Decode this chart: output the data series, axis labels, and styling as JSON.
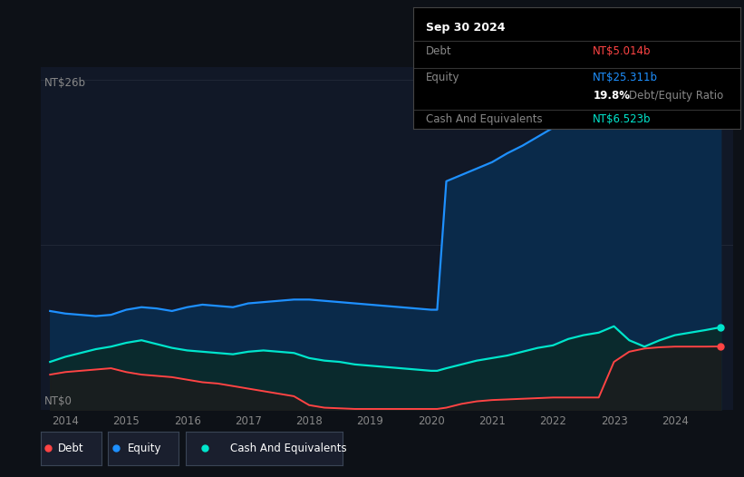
{
  "bg_color": "#0d1117",
  "plot_bg_color": "#111827",
  "title_box": {
    "date": "Sep 30 2024",
    "debt_label": "Debt",
    "debt_value": "NT$5.014b",
    "debt_color": "#ff4444",
    "equity_label": "Equity",
    "equity_value": "NT$25.311b",
    "equity_color": "#1e90ff",
    "ratio_value": "19.8%",
    "ratio_label": " Debt/Equity Ratio",
    "ratio_color": "#888888",
    "cash_label": "Cash And Equivalents",
    "cash_value": "NT$6.523b",
    "cash_color": "#00e5cc"
  },
  "y_label_top": "NT$26b",
  "y_label_bottom": "NT$0",
  "x_ticks": [
    2014,
    2015,
    2016,
    2017,
    2018,
    2019,
    2020,
    2021,
    2022,
    2023,
    2024
  ],
  "years_numeric": [
    2013.75,
    2014.0,
    2014.25,
    2014.5,
    2014.75,
    2015.0,
    2015.25,
    2015.5,
    2015.75,
    2016.0,
    2016.25,
    2016.5,
    2016.75,
    2017.0,
    2017.25,
    2017.5,
    2017.75,
    2018.0,
    2018.25,
    2018.5,
    2018.75,
    2019.0,
    2019.25,
    2019.5,
    2019.75,
    2020.0,
    2020.1,
    2020.25,
    2020.5,
    2020.75,
    2021.0,
    2021.25,
    2021.5,
    2021.75,
    2022.0,
    2022.25,
    2022.5,
    2022.75,
    2023.0,
    2023.25,
    2023.5,
    2023.75,
    2024.0,
    2024.25,
    2024.5,
    2024.75
  ],
  "equity": [
    7.8,
    7.6,
    7.5,
    7.4,
    7.5,
    7.9,
    8.1,
    8.0,
    7.8,
    8.1,
    8.3,
    8.2,
    8.1,
    8.4,
    8.5,
    8.6,
    8.7,
    8.7,
    8.6,
    8.5,
    8.4,
    8.3,
    8.2,
    8.1,
    8.0,
    7.9,
    7.9,
    18.0,
    18.5,
    19.0,
    19.5,
    20.2,
    20.8,
    21.5,
    22.2,
    22.8,
    23.3,
    23.7,
    24.2,
    22.8,
    22.2,
    23.0,
    23.5,
    24.2,
    24.8,
    25.311
  ],
  "cash": [
    3.8,
    4.2,
    4.5,
    4.8,
    5.0,
    5.3,
    5.5,
    5.2,
    4.9,
    4.7,
    4.6,
    4.5,
    4.4,
    4.6,
    4.7,
    4.6,
    4.5,
    4.1,
    3.9,
    3.8,
    3.6,
    3.5,
    3.4,
    3.3,
    3.2,
    3.1,
    3.1,
    3.3,
    3.6,
    3.9,
    4.1,
    4.3,
    4.6,
    4.9,
    5.1,
    5.6,
    5.9,
    6.1,
    6.6,
    5.5,
    5.0,
    5.5,
    5.9,
    6.1,
    6.3,
    6.523
  ],
  "debt": [
    2.8,
    3.0,
    3.1,
    3.2,
    3.3,
    3.0,
    2.8,
    2.7,
    2.6,
    2.4,
    2.2,
    2.1,
    1.9,
    1.7,
    1.5,
    1.3,
    1.1,
    0.4,
    0.2,
    0.15,
    0.1,
    0.1,
    0.1,
    0.1,
    0.1,
    0.1,
    0.1,
    0.2,
    0.5,
    0.7,
    0.8,
    0.85,
    0.9,
    0.95,
    1.0,
    1.0,
    1.0,
    1.0,
    3.8,
    4.6,
    4.85,
    4.95,
    5.0,
    5.0,
    5.0,
    5.014
  ],
  "equity_color": "#1e90ff",
  "equity_fill": "#0a2a4a",
  "cash_color": "#00e5cc",
  "cash_fill": "#0a2a2a",
  "debt_color": "#ff4444",
  "debt_fill": "#1a1a1a",
  "grid_color": "#2a3040",
  "legend_bg": "#1a1f2e",
  "legend_border": "#3a4555"
}
